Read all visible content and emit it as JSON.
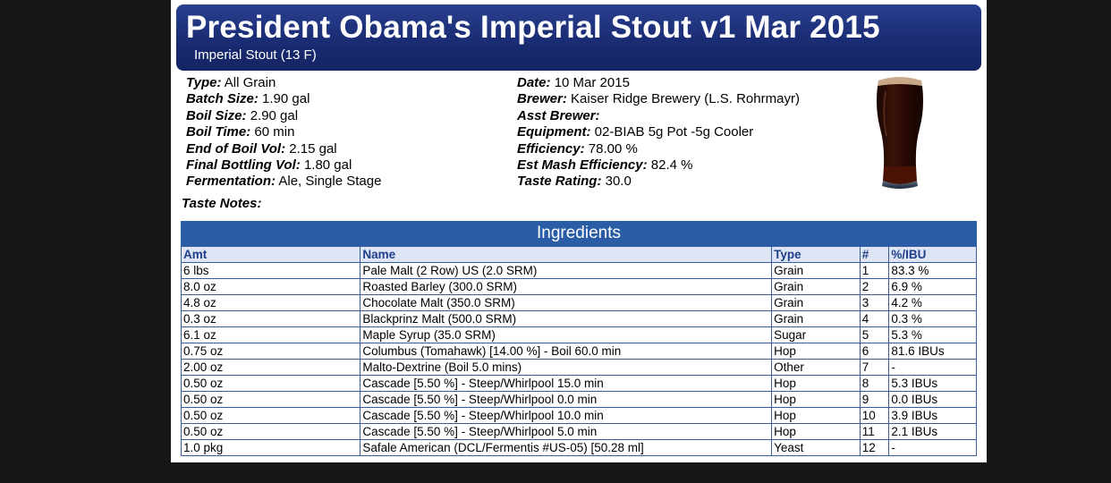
{
  "header": {
    "title": "President Obama's Imperial Stout v1 Mar 2015",
    "subtitle": "Imperial Stout (13 F)"
  },
  "left_info": [
    {
      "label": "Type:",
      "value": "All Grain"
    },
    {
      "label": "Batch Size:",
      "value": "1.90 gal"
    },
    {
      "label": "Boil Size:",
      "value": "2.90 gal"
    },
    {
      "label": "Boil Time:",
      "value": "60 min"
    },
    {
      "label": "End of Boil Vol:",
      "value": "2.15 gal"
    },
    {
      "label": "Final Bottling Vol:",
      "value": "1.80 gal"
    },
    {
      "label": "Fermentation:",
      "value": "Ale, Single Stage"
    }
  ],
  "right_info": [
    {
      "label": "Date:",
      "value": "10 Mar 2015"
    },
    {
      "label": "Brewer:",
      "value": "Kaiser Ridge Brewery (L.S. Rohrmayr)"
    },
    {
      "label": "Asst Brewer:",
      "value": ""
    },
    {
      "label": "Equipment:",
      "value": "02-BIAB 5g Pot -5g Cooler"
    },
    {
      "label": "Efficiency:",
      "value": "78.00 %"
    },
    {
      "label": "Est Mash Efficiency:",
      "value": "82.4 %"
    },
    {
      "label": "Taste Rating:",
      "value": "30.0"
    }
  ],
  "taste_notes_label": "Taste Notes:",
  "ingredients": {
    "title": "Ingredients",
    "columns": [
      "Amt",
      "Name",
      "Type",
      "#",
      "%/IBU"
    ],
    "rows": [
      [
        "6 lbs",
        "Pale Malt (2 Row) US (2.0 SRM)",
        "Grain",
        "1",
        "83.3 %"
      ],
      [
        "8.0 oz",
        "Roasted Barley (300.0 SRM)",
        "Grain",
        "2",
        "6.9 %"
      ],
      [
        "4.8 oz",
        "Chocolate Malt (350.0 SRM)",
        "Grain",
        "3",
        "4.2 %"
      ],
      [
        "0.3 oz",
        "Blackprinz Malt (500.0 SRM)",
        "Grain",
        "4",
        "0.3 %"
      ],
      [
        "6.1 oz",
        "Maple Syrup (35.0 SRM)",
        "Sugar",
        "5",
        "5.3 %"
      ],
      [
        "0.75 oz",
        "Columbus (Tomahawk) [14.00 %] - Boil 60.0 min",
        "Hop",
        "6",
        "81.6 IBUs"
      ],
      [
        "2.00 oz",
        "Malto-Dextrine (Boil 5.0 mins)",
        "Other",
        "7",
        "-"
      ],
      [
        "0.50 oz",
        "Cascade [5.50 %] - Steep/Whirlpool 15.0 min",
        "Hop",
        "8",
        "5.3 IBUs"
      ],
      [
        "0.50 oz",
        "Cascade [5.50 %] - Steep/Whirlpool 0.0 min",
        "Hop",
        "9",
        "0.0 IBUs"
      ],
      [
        "0.50 oz",
        "Cascade [5.50 %] - Steep/Whirlpool 10.0 min",
        "Hop",
        "10",
        "3.9 IBUs"
      ],
      [
        "0.50 oz",
        "Cascade [5.50 %] - Steep/Whirlpool 5.0 min",
        "Hop",
        "11",
        "2.1 IBUs"
      ],
      [
        "1.0 pkg",
        "Safale American (DCL/Fermentis #US-05) [50.28 ml]",
        "Yeast",
        "12",
        "-"
      ]
    ]
  },
  "colors": {
    "header_bg": "#1a2c73",
    "ingredients_bar": "#2b5ca6",
    "table_header_bg": "#dde4f3",
    "table_header_text": "#1f3f8c",
    "beer": "#2a0d05"
  },
  "icons": {
    "beer_glass": "beer-glass-icon"
  }
}
